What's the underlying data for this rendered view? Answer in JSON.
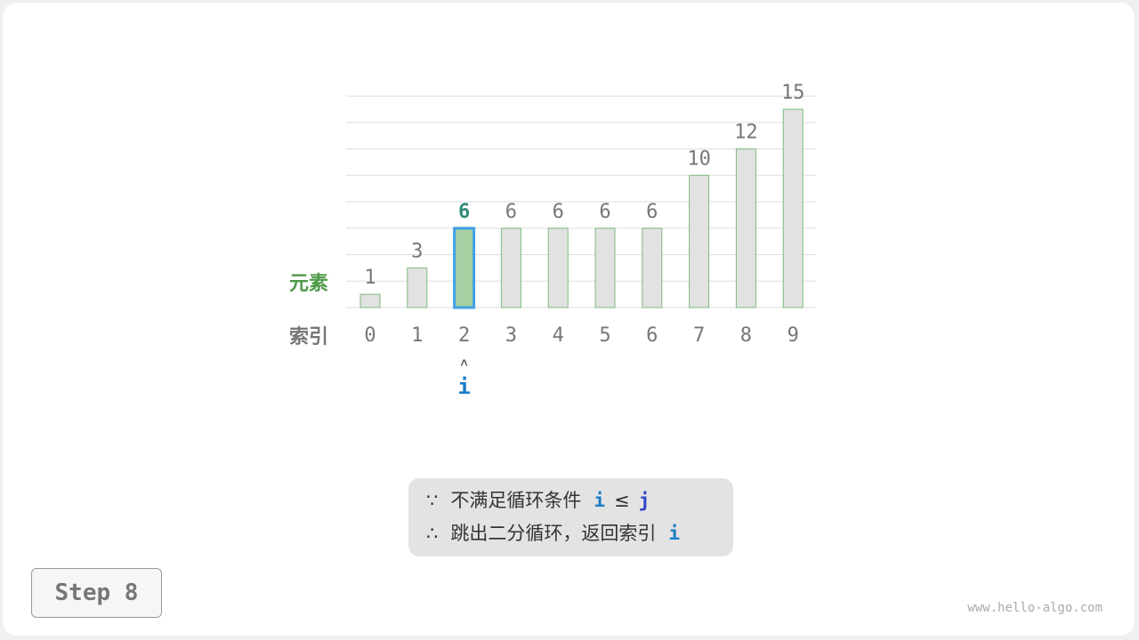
{
  "diagram": {
    "values": [
      1,
      3,
      6,
      6,
      6,
      6,
      6,
      10,
      12,
      15
    ],
    "indices": [
      "0",
      "1",
      "2",
      "3",
      "4",
      "5",
      "6",
      "7",
      "8",
      "9"
    ],
    "highlight_index": 2,
    "element_label": "元素",
    "index_label": "索引",
    "pointer": {
      "name": "i",
      "index": 2,
      "arrow": "˄"
    },
    "colors": {
      "bar_fill": "#e2e2e2",
      "bar_stroke": "#7dbb7b",
      "highlight_fill": "#a6cfa3",
      "highlight_stroke": "#41a0e6",
      "highlight_label": "#2f8a7a",
      "element_label": "#4f9a48",
      "index_label": "#777777",
      "pointer": "#1a7dc4"
    }
  },
  "note": {
    "line1_symbol": "∵",
    "line1_text": "不满足循环条件",
    "line1_var_i": "i",
    "line1_op": "≤",
    "line1_var_j": "j",
    "line2_symbol": "∴",
    "line2_text": "跳出二分循环，返回索引",
    "line2_var": "i"
  },
  "step_label": "Step 8",
  "watermark": "www.hello-algo.com"
}
